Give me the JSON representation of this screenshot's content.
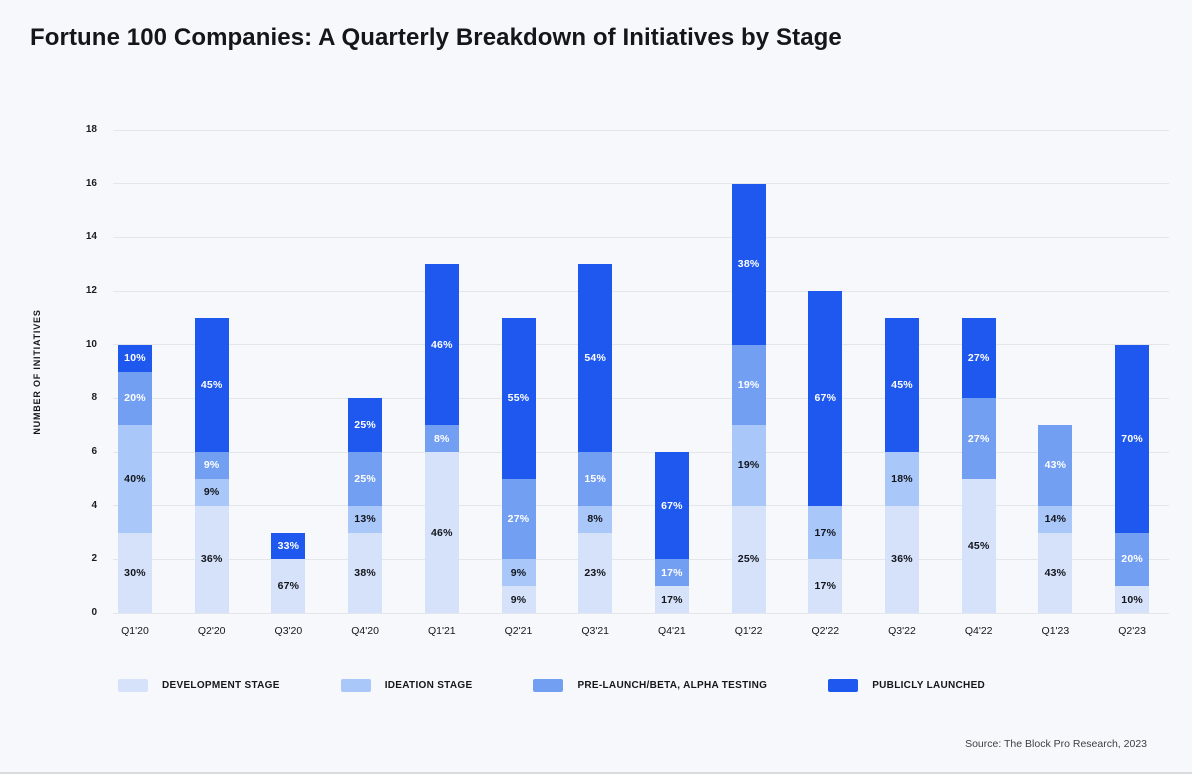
{
  "title": "Fortune 100 Companies: A Quarterly Breakdown of Initiatives by Stage",
  "source": "Source: The Block Pro Research, 2023",
  "colors": {
    "background": "#f7f8fb",
    "gridline": "#e3e6ea",
    "axis_text": "#15171b",
    "dark_label": "#12151c",
    "white_label": "#ffffff"
  },
  "chart_data": {
    "type": "bar",
    "stacked": true,
    "title": "Fortune 100 Companies: A Quarterly Breakdown of Initiatives by Stage",
    "xlabel": "",
    "ylabel": "NUMBER OF INITIATIVES",
    "ylim": [
      0,
      18
    ],
    "yticks": [
      0,
      2,
      4,
      6,
      8,
      10,
      12,
      14,
      16,
      18
    ],
    "grid": "horizontal",
    "legend_position": "bottom",
    "categories": [
      "Q1'20",
      "Q2'20",
      "Q3'20",
      "Q4'20",
      "Q1'21",
      "Q2'21",
      "Q3'21",
      "Q4'21",
      "Q1'22",
      "Q2'22",
      "Q3'22",
      "Q4'22",
      "Q1'23",
      "Q2'23"
    ],
    "totals": [
      10,
      11,
      3,
      8,
      13,
      11,
      13,
      6,
      16,
      12,
      11,
      11,
      7,
      10
    ],
    "series": [
      {
        "key": "development",
        "name": "DEVELOPMENT STAGE",
        "color": "#d6e2fa",
        "label_color": "#12151c",
        "values": [
          3,
          4,
          2,
          3,
          6,
          1,
          3,
          1,
          4,
          2,
          4,
          5,
          3,
          1
        ],
        "labels": [
          "30%",
          "36%",
          "67%",
          "38%",
          "46%",
          "9%",
          "23%",
          "17%",
          "25%",
          "17%",
          "36%",
          "45%",
          "43%",
          "10%"
        ]
      },
      {
        "key": "ideation",
        "name": "IDEATION STAGE",
        "color": "#a9c7f8",
        "label_color": "#12151c",
        "values": [
          4,
          1,
          0,
          1,
          0,
          1,
          1,
          0,
          3,
          2,
          2,
          0,
          1,
          0
        ],
        "labels": [
          "40%",
          "9%",
          "",
          "13%",
          "",
          "9%",
          "8%",
          "",
          "19%",
          "17%",
          "18%",
          "",
          "14%",
          ""
        ]
      },
      {
        "key": "prelaunch",
        "name": "PRE-LAUNCH/BETA, ALPHA TESTING",
        "color": "#739ff3",
        "label_color": "#ffffff",
        "values": [
          2,
          1,
          0,
          2,
          1,
          3,
          2,
          1,
          3,
          0,
          0,
          3,
          3,
          2
        ],
        "labels": [
          "20%",
          "9%",
          "",
          "25%",
          "8%",
          "27%",
          "15%",
          "17%",
          "19%",
          "",
          "",
          "27%",
          "43%",
          "20%"
        ]
      },
      {
        "key": "launched",
        "name": "PUBLICLY LAUNCHED",
        "color": "#1e58ef",
        "label_color": "#ffffff",
        "values": [
          1,
          5,
          1,
          2,
          6,
          6,
          7,
          4,
          6,
          8,
          5,
          3,
          0,
          7
        ],
        "labels": [
          "10%",
          "45%",
          "33%",
          "25%",
          "46%",
          "55%",
          "54%",
          "67%",
          "38%",
          "67%",
          "45%",
          "27%",
          "",
          "70%"
        ]
      }
    ]
  }
}
